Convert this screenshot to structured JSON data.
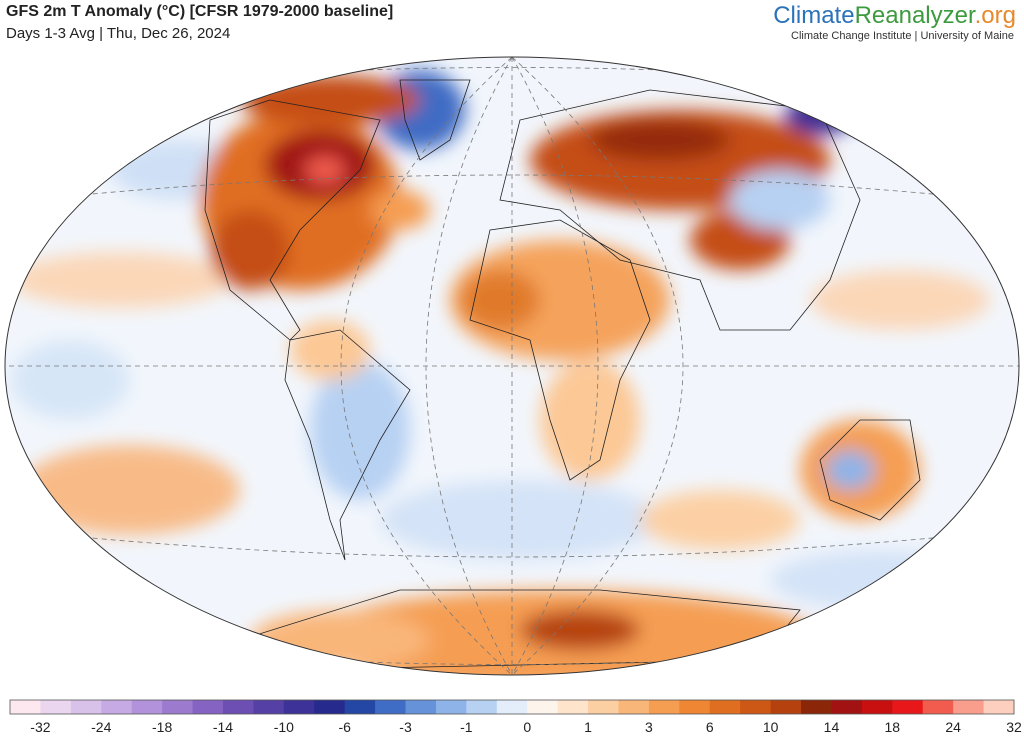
{
  "header": {
    "title": "GFS 2m T Anomaly (°C) [CFSR 1979-2000 baseline]",
    "subtitle": "Days 1-3 Avg | Thu, Dec 26, 2024"
  },
  "brand": {
    "parts": [
      {
        "text": "Climate",
        "color": "#2b72b9"
      },
      {
        "text": "Reanalyzer",
        "color": "#3c9a3f"
      },
      {
        "text": ".org",
        "color": "#e8892c"
      }
    ],
    "subtitle": "Climate Change Institute | University of Maine"
  },
  "colorbar": {
    "colors": [
      "#fde8ef",
      "#ead7ef",
      "#d9c2ea",
      "#c6aae3",
      "#b292da",
      "#9c7bcf",
      "#8563c2",
      "#6d4fb3",
      "#5540a5",
      "#3c3297",
      "#262a8c",
      "#2447a6",
      "#3f6cc4",
      "#6592d8",
      "#8eb3e8",
      "#b7d1f3",
      "#e4eefa",
      "#fdf4ec",
      "#fde4cb",
      "#fccfa2",
      "#f9b679",
      "#f59e52",
      "#ee8633",
      "#e06e20",
      "#cd5714",
      "#b5420e",
      "#8c2608",
      "#a21212",
      "#c81010",
      "#e8181a",
      "#f25c4e",
      "#f99d8c",
      "#fccfbf"
    ],
    "labels": [
      "-32",
      "-24",
      "-18",
      "-14",
      "-10",
      "-6",
      "-3",
      "-1",
      "0",
      "1",
      "3",
      "6",
      "10",
      "14",
      "18",
      "24",
      "32"
    ]
  }
}
